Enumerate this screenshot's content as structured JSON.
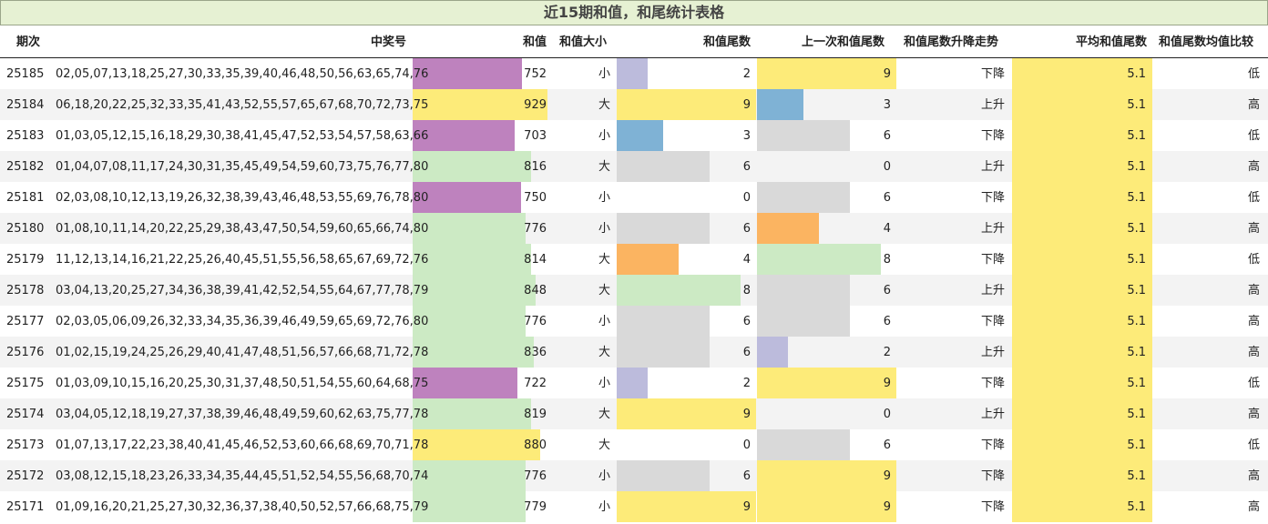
{
  "title": "近15期和值，和尾统计表格",
  "headers": {
    "period": "期次",
    "numbers": "中奖号",
    "sum": "和值",
    "size": "和值大小",
    "tail": "和值尾数",
    "prev_tail": "上一次和值尾数",
    "trend": "和值尾数升降走势",
    "avg_tail": "平均和值尾数",
    "compare": "和值尾数均值比较"
  },
  "colors": {
    "purple": "#be82be",
    "yellow": "#fdeb79",
    "green": "#cceac4",
    "lavender": "#bcbbdc",
    "blue": "#7fb2d5",
    "gray": "#d9d9d9",
    "orange": "#fbb461",
    "avg_bg": "#fdeb79"
  },
  "rows": [
    {
      "period": "25185",
      "numbers": "02,05,07,13,18,25,27,30,33,35,39,40,46,48,50,56,63,65,74,76",
      "sum": 752,
      "sum_color": "purple",
      "size": "小",
      "tail": 2,
      "tail_color": "lavender",
      "prev_tail": 9,
      "prev_tail_color": "yellow",
      "trend": "下降",
      "avg_tail": "5.1",
      "compare": "低"
    },
    {
      "period": "25184",
      "numbers": "06,18,20,22,25,32,33,35,41,43,52,55,57,65,67,68,70,72,73,75",
      "sum": 929,
      "sum_color": "yellow",
      "size": "大",
      "tail": 9,
      "tail_color": "yellow",
      "prev_tail": 3,
      "prev_tail_color": "blue",
      "trend": "上升",
      "avg_tail": "5.1",
      "compare": "高"
    },
    {
      "period": "25183",
      "numbers": "01,03,05,12,15,16,18,29,30,38,41,45,47,52,53,54,57,58,63,66",
      "sum": 703,
      "sum_color": "purple",
      "size": "小",
      "tail": 3,
      "tail_color": "blue",
      "prev_tail": 6,
      "prev_tail_color": "gray",
      "trend": "下降",
      "avg_tail": "5.1",
      "compare": "低"
    },
    {
      "period": "25182",
      "numbers": "01,04,07,08,11,17,24,30,31,35,45,49,54,59,60,73,75,76,77,80",
      "sum": 816,
      "sum_color": "green",
      "size": "大",
      "tail": 6,
      "tail_color": "gray",
      "prev_tail": 0,
      "prev_tail_color": "gray",
      "trend": "上升",
      "avg_tail": "5.1",
      "compare": "高"
    },
    {
      "period": "25181",
      "numbers": "02,03,08,10,12,13,19,26,32,38,39,43,46,48,53,55,69,76,78,80",
      "sum": 750,
      "sum_color": "purple",
      "size": "小",
      "tail": 0,
      "tail_color": "gray",
      "prev_tail": 6,
      "prev_tail_color": "gray",
      "trend": "下降",
      "avg_tail": "5.1",
      "compare": "低"
    },
    {
      "period": "25180",
      "numbers": "01,08,10,11,14,20,22,25,29,38,43,47,50,54,59,60,65,66,74,80",
      "sum": 776,
      "sum_color": "green",
      "size": "小",
      "tail": 6,
      "tail_color": "gray",
      "prev_tail": 4,
      "prev_tail_color": "orange",
      "trend": "上升",
      "avg_tail": "5.1",
      "compare": "高"
    },
    {
      "period": "25179",
      "numbers": "11,12,13,14,16,21,22,25,26,40,45,51,55,56,58,65,67,69,72,76",
      "sum": 814,
      "sum_color": "green",
      "size": "大",
      "tail": 4,
      "tail_color": "orange",
      "prev_tail": 8,
      "prev_tail_color": "green",
      "trend": "下降",
      "avg_tail": "5.1",
      "compare": "低"
    },
    {
      "period": "25178",
      "numbers": "03,04,13,20,25,27,34,36,38,39,41,42,52,54,55,64,67,77,78,79",
      "sum": 848,
      "sum_color": "green",
      "size": "大",
      "tail": 8,
      "tail_color": "green",
      "prev_tail": 6,
      "prev_tail_color": "gray",
      "trend": "上升",
      "avg_tail": "5.1",
      "compare": "高"
    },
    {
      "period": "25177",
      "numbers": "02,03,05,06,09,26,32,33,34,35,36,39,46,49,59,65,69,72,76,80",
      "sum": 776,
      "sum_color": "green",
      "size": "小",
      "tail": 6,
      "tail_color": "gray",
      "prev_tail": 6,
      "prev_tail_color": "gray",
      "trend": "下降",
      "avg_tail": "5.1",
      "compare": "高"
    },
    {
      "period": "25176",
      "numbers": "01,02,15,19,24,25,26,29,40,41,47,48,51,56,57,66,68,71,72,78",
      "sum": 836,
      "sum_color": "green",
      "size": "大",
      "tail": 6,
      "tail_color": "gray",
      "prev_tail": 2,
      "prev_tail_color": "lavender",
      "trend": "上升",
      "avg_tail": "5.1",
      "compare": "高"
    },
    {
      "period": "25175",
      "numbers": "01,03,09,10,15,16,20,25,30,31,37,48,50,51,54,55,60,64,68,75",
      "sum": 722,
      "sum_color": "purple",
      "size": "小",
      "tail": 2,
      "tail_color": "lavender",
      "prev_tail": 9,
      "prev_tail_color": "yellow",
      "trend": "下降",
      "avg_tail": "5.1",
      "compare": "低"
    },
    {
      "period": "25174",
      "numbers": "03,04,05,12,18,19,27,37,38,39,46,48,49,59,60,62,63,75,77,78",
      "sum": 819,
      "sum_color": "green",
      "size": "大",
      "tail": 9,
      "tail_color": "yellow",
      "prev_tail": 0,
      "prev_tail_color": "gray",
      "trend": "上升",
      "avg_tail": "5.1",
      "compare": "高"
    },
    {
      "period": "25173",
      "numbers": "01,07,13,17,22,23,38,40,41,45,46,52,53,60,66,68,69,70,71,78",
      "sum": 880,
      "sum_color": "yellow",
      "size": "大",
      "tail": 0,
      "tail_color": "gray",
      "prev_tail": 6,
      "prev_tail_color": "gray",
      "trend": "下降",
      "avg_tail": "5.1",
      "compare": "低"
    },
    {
      "period": "25172",
      "numbers": "03,08,12,15,18,23,26,33,34,35,44,45,51,52,54,55,56,68,70,74",
      "sum": 776,
      "sum_color": "green",
      "size": "小",
      "tail": 6,
      "tail_color": "gray",
      "prev_tail": 9,
      "prev_tail_color": "yellow",
      "trend": "下降",
      "avg_tail": "5.1",
      "compare": "高"
    },
    {
      "period": "25171",
      "numbers": "01,09,16,20,21,25,27,30,32,36,37,38,40,50,52,57,66,68,75,79",
      "sum": 779,
      "sum_color": "green",
      "size": "小",
      "tail": 9,
      "tail_color": "yellow",
      "prev_tail": 9,
      "prev_tail_color": "yellow",
      "trend": "下降",
      "avg_tail": "5.1",
      "compare": "高"
    }
  ]
}
